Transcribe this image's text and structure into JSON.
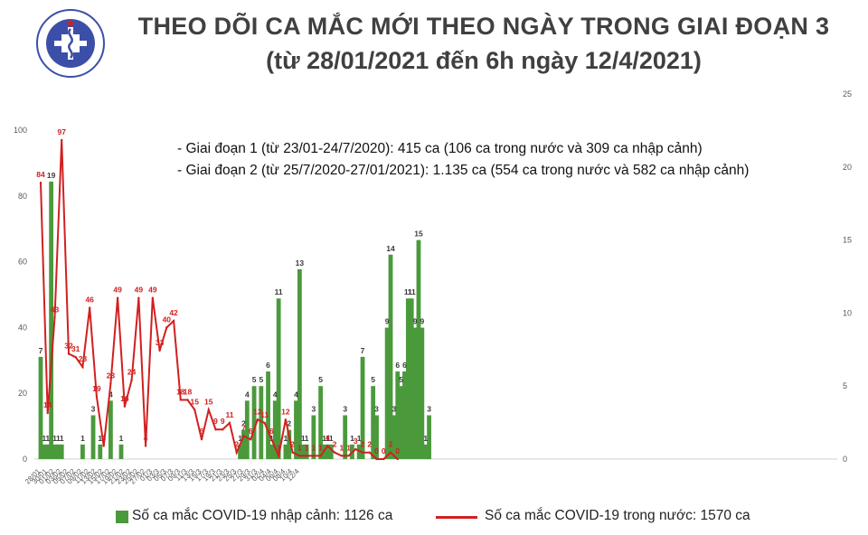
{
  "logo": {
    "top_text": "BỘ Y TẾ",
    "bottom_text": "MINISTRY OF HEALTH",
    "icon": "ministry-of-health-seal-icon",
    "color": "#3c4fa8"
  },
  "header": {
    "title_line1": "THEO DÕI CA MẮC MỚI THEO NGÀY TRONG GIAI ĐOẠN 3",
    "title_line2": "(từ 28/01/2021 đến 6h ngày 12/4/2021)"
  },
  "notes": [
    "- Giai đoạn 1 (từ 23/01-24/7/2020): 415 ca (106 ca trong nước và 309 ca nhập cảnh)",
    "- Giai đoạn 2 (từ 25/7/2020-27/01/2021): 1.135 ca (554 ca trong nước và 582 ca nhập cảnh)"
  ],
  "legend": {
    "bar_label": "Số ca mắc COVID-19 nhập cảnh: 1126 ca",
    "line_label": "Số ca mắc COVID-19 trong nước: 1570 ca"
  },
  "colors": {
    "bar": "#4a9a3c",
    "line": "#d21f1f",
    "axis_text": "#595959"
  },
  "chart_data": {
    "type": "bar+line",
    "start_date": "2021-01-28",
    "x_tick_labels": [
      "28/01",
      "30/01",
      "01/02",
      "03/02",
      "05/02",
      "07/02",
      "09/02",
      "11/02",
      "13/02",
      "15/02",
      "17/02",
      "19/02",
      "21/02",
      "23/02",
      "25/02",
      "27/02",
      "01/3",
      "03/3",
      "05/3",
      "07/3",
      "09/3",
      "11/3",
      "13/3",
      "15/3",
      "17/3",
      "19/3",
      "21/3",
      "23/3",
      "25/3",
      "27/3",
      "29/3",
      "31/3",
      "02/4",
      "04/4",
      "06/4",
      "08/4",
      "10/4",
      "12/4"
    ],
    "left_axis": {
      "min": 0,
      "max": 100,
      "ticks": [
        0,
        20,
        40,
        60,
        80,
        100
      ]
    },
    "right_axis": {
      "min": 0,
      "max": 25,
      "ticks": [
        0,
        5,
        10,
        15,
        20,
        25
      ]
    },
    "series": [
      {
        "name": "Số ca mắc COVID-19 nhập cảnh",
        "type": "bar",
        "axis": "right",
        "values": [
          7,
          1,
          1,
          19,
          1,
          1,
          1,
          null,
          null,
          null,
          null,
          null,
          1,
          null,
          null,
          3,
          null,
          1,
          null,
          null,
          4,
          null,
          null,
          1,
          null,
          null,
          null,
          null,
          null,
          null,
          null,
          null,
          null,
          null,
          null,
          null,
          null,
          null,
          null,
          null,
          null,
          null,
          null,
          null,
          null,
          null,
          null,
          null,
          null,
          null,
          null,
          null,
          null,
          null,
          null,
          null,
          null,
          1,
          2,
          4,
          null,
          5,
          null,
          5,
          null,
          6,
          1,
          4,
          11,
          null,
          1,
          2,
          null,
          4,
          13,
          1,
          1,
          null,
          3,
          null,
          5,
          1,
          1,
          1,
          null,
          null,
          null,
          3,
          null,
          1,
          null,
          1,
          7,
          null,
          null,
          5,
          3,
          null,
          null,
          9,
          14,
          3,
          6,
          5,
          6,
          11,
          11,
          9,
          15,
          9,
          1,
          3
        ],
        "value_labels": [
          7,
          1,
          1,
          19,
          1,
          1,
          1,
          null,
          null,
          null,
          null,
          null,
          1,
          null,
          null,
          3,
          null,
          1,
          null,
          null,
          4,
          null,
          null,
          1,
          null,
          null,
          null,
          null,
          null,
          null,
          null,
          null,
          null,
          null,
          null,
          null,
          null,
          null,
          null,
          null,
          null,
          null,
          null,
          null,
          null,
          null,
          null,
          null,
          null,
          null,
          null,
          null,
          null,
          null,
          null,
          null,
          null,
          1,
          2,
          4,
          null,
          5,
          null,
          5,
          null,
          6,
          1,
          4,
          11,
          null,
          1,
          2,
          null,
          4,
          13,
          1,
          1,
          null,
          3,
          null,
          5,
          1,
          1,
          1,
          null,
          null,
          null,
          3,
          null,
          1,
          null,
          1,
          7,
          null,
          null,
          5,
          3,
          null,
          null,
          9,
          14,
          3,
          6,
          5,
          6,
          11,
          11,
          9,
          15,
          9,
          1,
          3
        ]
      },
      {
        "name": "Số ca mắc COVID-19 trong nước",
        "type": "line",
        "axis": "left",
        "values": [
          84,
          14,
          43,
          97,
          32,
          31,
          28,
          46,
          19,
          4,
          23,
          49,
          16,
          24,
          49,
          4,
          49,
          33,
          40,
          42,
          18,
          18,
          15,
          6,
          15,
          9,
          9,
          11,
          2,
          7,
          6,
          12,
          11,
          6,
          1,
          12,
          2,
          1,
          1,
          1,
          1,
          4,
          2,
          1,
          1,
          3,
          2,
          2,
          0,
          0,
          2,
          0
        ],
        "value_labels": [
          84,
          14,
          43,
          97,
          32,
          31,
          28,
          46,
          19,
          4,
          23,
          49,
          16,
          24,
          49,
          4,
          49,
          33,
          40,
          42,
          18,
          18,
          15,
          6,
          15,
          9,
          9,
          11,
          2,
          7,
          6,
          12,
          11,
          6,
          1,
          12,
          2,
          1,
          1,
          1,
          1,
          4,
          2,
          1,
          1,
          3,
          2,
          2,
          0,
          0,
          2,
          0
        ],
        "day_index": [
          0,
          2,
          4,
          6,
          8,
          10,
          12,
          14,
          16,
          18,
          20,
          22,
          24,
          26,
          28,
          30,
          32,
          34,
          36,
          38,
          40,
          42,
          44,
          46,
          48,
          50,
          52,
          54,
          56,
          58,
          60,
          62,
          64,
          66,
          68,
          70,
          72,
          74,
          76,
          78,
          80,
          82,
          84,
          86,
          88,
          90,
          92,
          94,
          96,
          98,
          100,
          102
        ]
      }
    ]
  }
}
